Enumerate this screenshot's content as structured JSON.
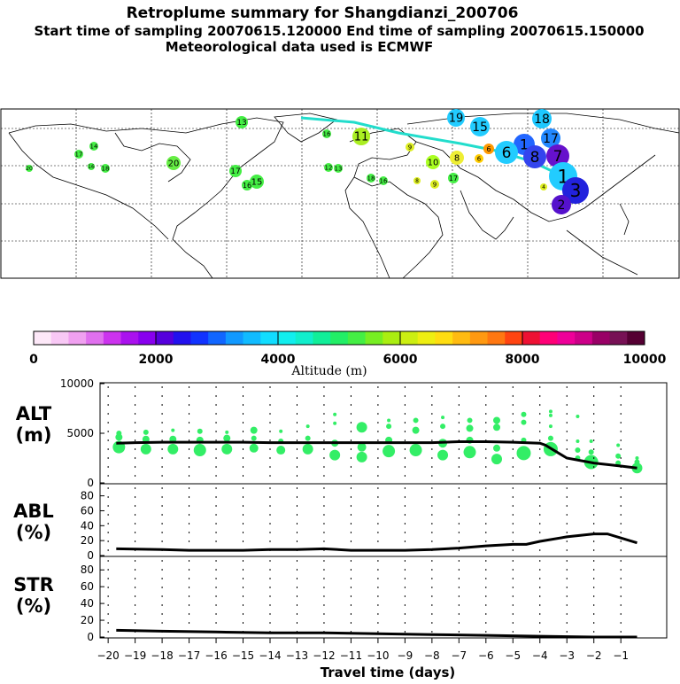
{
  "title": {
    "line1": "Retroplume summary for Shangdianzi_200706",
    "line2": "Start time of sampling 20070615.120000     End time of sampling 20070615.150000",
    "line3": "Meteorological data used is ECMWF"
  },
  "map_labels": [
    {
      "t": "19",
      "c": "#22ccff",
      "x": 515,
      "y": 133,
      "r": 10
    },
    {
      "t": "15",
      "c": "#22ccff",
      "x": 542,
      "y": 143,
      "r": 11
    },
    {
      "t": "18",
      "c": "#1ec8ff",
      "x": 612,
      "y": 134,
      "r": 11
    },
    {
      "t": "17",
      "c": "#2288ff",
      "x": 622,
      "y": 156,
      "r": 11
    },
    {
      "t": "1",
      "c": "#2266ff",
      "x": 592,
      "y": 163,
      "r": 12
    },
    {
      "t": "6",
      "c": "#22ccff",
      "x": 572,
      "y": 172,
      "r": 13
    },
    {
      "t": "8",
      "c": "#3344ee",
      "x": 604,
      "y": 177,
      "r": 13
    },
    {
      "t": "7",
      "c": "#6611cc",
      "x": 630,
      "y": 176,
      "r": 13
    },
    {
      "t": "1",
      "c": "#22ccff",
      "x": 636,
      "y": 199,
      "r": 16
    },
    {
      "t": "3",
      "c": "#2222dd",
      "x": 650,
      "y": 215,
      "r": 15
    },
    {
      "t": "2",
      "c": "#5511cc",
      "x": 634,
      "y": 231,
      "r": 11
    },
    {
      "t": "8",
      "c": "#eeee33",
      "x": 516,
      "y": 178,
      "r": 8
    },
    {
      "t": "6",
      "c": "#ff9900",
      "x": 552,
      "y": 168,
      "r": 6
    },
    {
      "t": "6",
      "c": "#ffcc00",
      "x": 541,
      "y": 179,
      "r": 5
    },
    {
      "t": "10",
      "c": "#aaff22",
      "x": 489,
      "y": 183,
      "r": 8
    },
    {
      "t": "11",
      "c": "#aaee22",
      "x": 408,
      "y": 154,
      "r": 10
    },
    {
      "t": "13",
      "c": "#44ee44",
      "x": 273,
      "y": 138,
      "r": 7
    },
    {
      "t": "20",
      "c": "#66ee44",
      "x": 196,
      "y": 184,
      "r": 8
    },
    {
      "t": "17",
      "c": "#44ee44",
      "x": 266,
      "y": 193,
      "r": 7
    },
    {
      "t": "15",
      "c": "#44ee44",
      "x": 290,
      "y": 205,
      "r": 8
    },
    {
      "t": "16",
      "c": "#44ee44",
      "x": 279,
      "y": 209,
      "r": 6
    },
    {
      "t": "17",
      "c": "#44ee44",
      "x": 512,
      "y": 201,
      "r": 6
    },
    {
      "t": "9",
      "c": "#ddee22",
      "x": 463,
      "y": 166,
      "r": 5
    },
    {
      "t": "9",
      "c": "#ddee22",
      "x": 491,
      "y": 208,
      "r": 5
    },
    {
      "t": "8",
      "c": "#ddee22",
      "x": 471,
      "y": 204,
      "r": 4
    },
    {
      "t": "17",
      "c": "#44ee44",
      "x": 89,
      "y": 174,
      "r": 5
    },
    {
      "t": "14",
      "c": "#44ee44",
      "x": 106,
      "y": 165,
      "r": 5
    },
    {
      "t": "18",
      "c": "#44ee44",
      "x": 119,
      "y": 190,
      "r": 5
    },
    {
      "t": "16",
      "c": "#44ee44",
      "x": 103,
      "y": 188,
      "r": 4
    },
    {
      "t": "20",
      "c": "#44ee44",
      "x": 33,
      "y": 190,
      "r": 4
    },
    {
      "t": "12",
      "c": "#44ee44",
      "x": 371,
      "y": 189,
      "r": 5
    },
    {
      "t": "13",
      "c": "#44ee44",
      "x": 382,
      "y": 190,
      "r": 5
    },
    {
      "t": "16",
      "c": "#44ee44",
      "x": 369,
      "y": 151,
      "r": 5
    },
    {
      "t": "18",
      "c": "#44ee44",
      "x": 419,
      "y": 201,
      "r": 5
    },
    {
      "t": "16",
      "c": "#44ee44",
      "x": 433,
      "y": 204,
      "r": 5
    },
    {
      "t": "4",
      "c": "#ddee22",
      "x": 614,
      "y": 211,
      "r": 4
    }
  ],
  "colorbar": {
    "colors": [
      "#fde8f8",
      "#f8c8f5",
      "#f0a0f0",
      "#e070ee",
      "#cc33ee",
      "#aa11ee",
      "#8800ee",
      "#5500dd",
      "#2211ee",
      "#1133ff",
      "#1166ff",
      "#1199ff",
      "#11bbff",
      "#11ddff",
      "#11eeee",
      "#11eecc",
      "#11ee99",
      "#22ee66",
      "#44ee44",
      "#77ee22",
      "#aaee11",
      "#ccee11",
      "#eeee11",
      "#ffdd11",
      "#ffbb11",
      "#ff9911",
      "#ff7711",
      "#ff4411",
      "#ee1133",
      "#ff0077",
      "#ee0099",
      "#cc0088",
      "#990066",
      "#771155",
      "#550033"
    ],
    "ticks": [
      "0",
      "2000",
      "4000",
      "6000",
      "8000",
      "10000"
    ],
    "label": "Altitude (m)"
  },
  "panels": {
    "alt": {
      "label1": "ALT",
      "label2": "(m)",
      "yticks": [
        "10000",
        "5000",
        "0"
      ]
    },
    "abl": {
      "label1": "ABL",
      "label2": "(%)",
      "yticks": [
        "80",
        "60",
        "40",
        "20",
        "0"
      ]
    },
    "str": {
      "label1": "STR",
      "label2": "(%)",
      "yticks": [
        "80",
        "60",
        "40",
        "20",
        "0"
      ]
    }
  },
  "x_axis": {
    "label": "Travel time (days)",
    "ticks": [
      "−20",
      "−19",
      "−18",
      "−17",
      "−16",
      "−15",
      "−14",
      "−13",
      "−12",
      "−11",
      "−10",
      "−9",
      "−8",
      "−7",
      "−6",
      "−5",
      "−4",
      "−3",
      "−2",
      "−1"
    ]
  },
  "chart_data": [
    {
      "type": "line",
      "title": "ALT",
      "xlabel": "Travel time (days)",
      "ylabel": "ALT (m)",
      "xlim": [
        -20.3,
        0.7
      ],
      "ylim": [
        0,
        10000
      ],
      "series": [
        {
          "name": "mean altitude",
          "x": [
            -19.7,
            -19,
            -18,
            -17,
            -16,
            -15,
            -14,
            -13,
            -12,
            -11,
            -10,
            -9,
            -8,
            -7,
            -6,
            -5,
            -4,
            -3.8,
            -3,
            -2,
            -1,
            -0.4
          ],
          "values": [
            4000,
            4050,
            4100,
            4100,
            4100,
            4100,
            4050,
            4050,
            4050,
            4050,
            4050,
            4050,
            4050,
            4150,
            4150,
            4100,
            4000,
            3800,
            2500,
            2000,
            1700,
            1500
          ]
        }
      ],
      "scatter": [
        {
          "x": -19.6,
          "y": 3600,
          "s": 7
        },
        {
          "x": -19.6,
          "y": 4600,
          "s": 4
        },
        {
          "x": -19.6,
          "y": 5000,
          "s": 3
        },
        {
          "x": -18.6,
          "y": 3400,
          "s": 6
        },
        {
          "x": -18.6,
          "y": 4400,
          "s": 4
        },
        {
          "x": -18.6,
          "y": 5100,
          "s": 3
        },
        {
          "x": -17.6,
          "y": 3400,
          "s": 6
        },
        {
          "x": -17.6,
          "y": 4400,
          "s": 4
        },
        {
          "x": -17.6,
          "y": 5300,
          "s": 2
        },
        {
          "x": -16.6,
          "y": 3300,
          "s": 7
        },
        {
          "x": -16.6,
          "y": 4300,
          "s": 4
        },
        {
          "x": -16.6,
          "y": 5200,
          "s": 3
        },
        {
          "x": -15.6,
          "y": 3400,
          "s": 6
        },
        {
          "x": -15.6,
          "y": 4500,
          "s": 4
        },
        {
          "x": -15.6,
          "y": 5100,
          "s": 2
        },
        {
          "x": -14.6,
          "y": 3500,
          "s": 5
        },
        {
          "x": -14.6,
          "y": 4500,
          "s": 3
        },
        {
          "x": -14.6,
          "y": 5300,
          "s": 4
        },
        {
          "x": -13.6,
          "y": 3300,
          "s": 5
        },
        {
          "x": -13.6,
          "y": 4200,
          "s": 3
        },
        {
          "x": -13.6,
          "y": 5200,
          "s": 2
        },
        {
          "x": -12.6,
          "y": 3400,
          "s": 6
        },
        {
          "x": -12.6,
          "y": 4500,
          "s": 3
        },
        {
          "x": -12.6,
          "y": 5700,
          "s": 2
        },
        {
          "x": -11.6,
          "y": 2800,
          "s": 6
        },
        {
          "x": -11.6,
          "y": 4000,
          "s": 4
        },
        {
          "x": -11.6,
          "y": 6000,
          "s": 2
        },
        {
          "x": -11.6,
          "y": 6900,
          "s": 2
        },
        {
          "x": -10.6,
          "y": 2600,
          "s": 6
        },
        {
          "x": -10.6,
          "y": 3600,
          "s": 5
        },
        {
          "x": -10.6,
          "y": 5600,
          "s": 6
        },
        {
          "x": -9.6,
          "y": 3200,
          "s": 7
        },
        {
          "x": -9.6,
          "y": 4300,
          "s": 4
        },
        {
          "x": -9.6,
          "y": 5700,
          "s": 3
        },
        {
          "x": -9.6,
          "y": 6300,
          "s": 2
        },
        {
          "x": -8.6,
          "y": 3300,
          "s": 7
        },
        {
          "x": -8.6,
          "y": 5300,
          "s": 4
        },
        {
          "x": -8.6,
          "y": 6300,
          "s": 3
        },
        {
          "x": -7.6,
          "y": 2800,
          "s": 6
        },
        {
          "x": -7.6,
          "y": 4000,
          "s": 5
        },
        {
          "x": -7.6,
          "y": 5700,
          "s": 3
        },
        {
          "x": -7.6,
          "y": 6600,
          "s": 2
        },
        {
          "x": -6.6,
          "y": 3100,
          "s": 7
        },
        {
          "x": -6.6,
          "y": 4300,
          "s": 4
        },
        {
          "x": -6.6,
          "y": 5500,
          "s": 4
        },
        {
          "x": -6.6,
          "y": 6300,
          "s": 3
        },
        {
          "x": -5.6,
          "y": 2400,
          "s": 6
        },
        {
          "x": -5.6,
          "y": 3500,
          "s": 4
        },
        {
          "x": -5.6,
          "y": 5600,
          "s": 4
        },
        {
          "x": -5.6,
          "y": 6300,
          "s": 4
        },
        {
          "x": -4.6,
          "y": 3000,
          "s": 8
        },
        {
          "x": -4.6,
          "y": 4300,
          "s": 3
        },
        {
          "x": -4.6,
          "y": 6100,
          "s": 3
        },
        {
          "x": -4.6,
          "y": 6900,
          "s": 3
        },
        {
          "x": -3.6,
          "y": 3400,
          "s": 8
        },
        {
          "x": -3.6,
          "y": 4500,
          "s": 3
        },
        {
          "x": -3.6,
          "y": 5700,
          "s": 2
        },
        {
          "x": -3.6,
          "y": 6800,
          "s": 2
        },
        {
          "x": -3.6,
          "y": 7200,
          "s": 2
        },
        {
          "x": -2.6,
          "y": 2500,
          "s": 3
        },
        {
          "x": -2.6,
          "y": 3300,
          "s": 3
        },
        {
          "x": -2.6,
          "y": 4200,
          "s": 2
        },
        {
          "x": -2.6,
          "y": 6700,
          "s": 2
        },
        {
          "x": -2.1,
          "y": 2100,
          "s": 8
        },
        {
          "x": -2.1,
          "y": 3100,
          "s": 3
        },
        {
          "x": -2.1,
          "y": 4200,
          "s": 2
        },
        {
          "x": -1.1,
          "y": 2000,
          "s": 3
        },
        {
          "x": -1.1,
          "y": 2700,
          "s": 3
        },
        {
          "x": -1.1,
          "y": 3800,
          "s": 2
        },
        {
          "x": -0.4,
          "y": 1500,
          "s": 6
        },
        {
          "x": -0.4,
          "y": 2100,
          "s": 3
        },
        {
          "x": -0.4,
          "y": 2500,
          "s": 2
        }
      ]
    },
    {
      "type": "line",
      "title": "ABL",
      "xlabel": "Travel time (days)",
      "ylabel": "ABL (%)",
      "xlim": [
        -20.3,
        0.7
      ],
      "ylim": [
        0,
        100
      ],
      "series": [
        {
          "name": "ABL fraction",
          "x": [
            -19.7,
            -18,
            -17,
            -16,
            -15,
            -14,
            -13,
            -12,
            -11,
            -10,
            -9,
            -8,
            -7,
            -6,
            -5,
            -4.5,
            -4,
            -3,
            -2,
            -1.5,
            -0.4
          ],
          "values": [
            9,
            8,
            7,
            7,
            7,
            8,
            8,
            9,
            7,
            7,
            7,
            8,
            10,
            13,
            15,
            15,
            19,
            25,
            29,
            29,
            17
          ]
        }
      ]
    },
    {
      "type": "line",
      "title": "STR",
      "xlabel": "Travel time (days)",
      "ylabel": "STR (%)",
      "xlim": [
        -20.3,
        0.7
      ],
      "ylim": [
        0,
        100
      ],
      "series": [
        {
          "name": "STR fraction",
          "x": [
            -19.7,
            -18,
            -16,
            -14,
            -12,
            -10,
            -8,
            -6,
            -4,
            -2,
            -0.4
          ],
          "values": [
            8,
            7,
            6,
            5,
            5,
            4,
            3,
            2,
            1,
            0,
            0
          ]
        }
      ]
    }
  ]
}
